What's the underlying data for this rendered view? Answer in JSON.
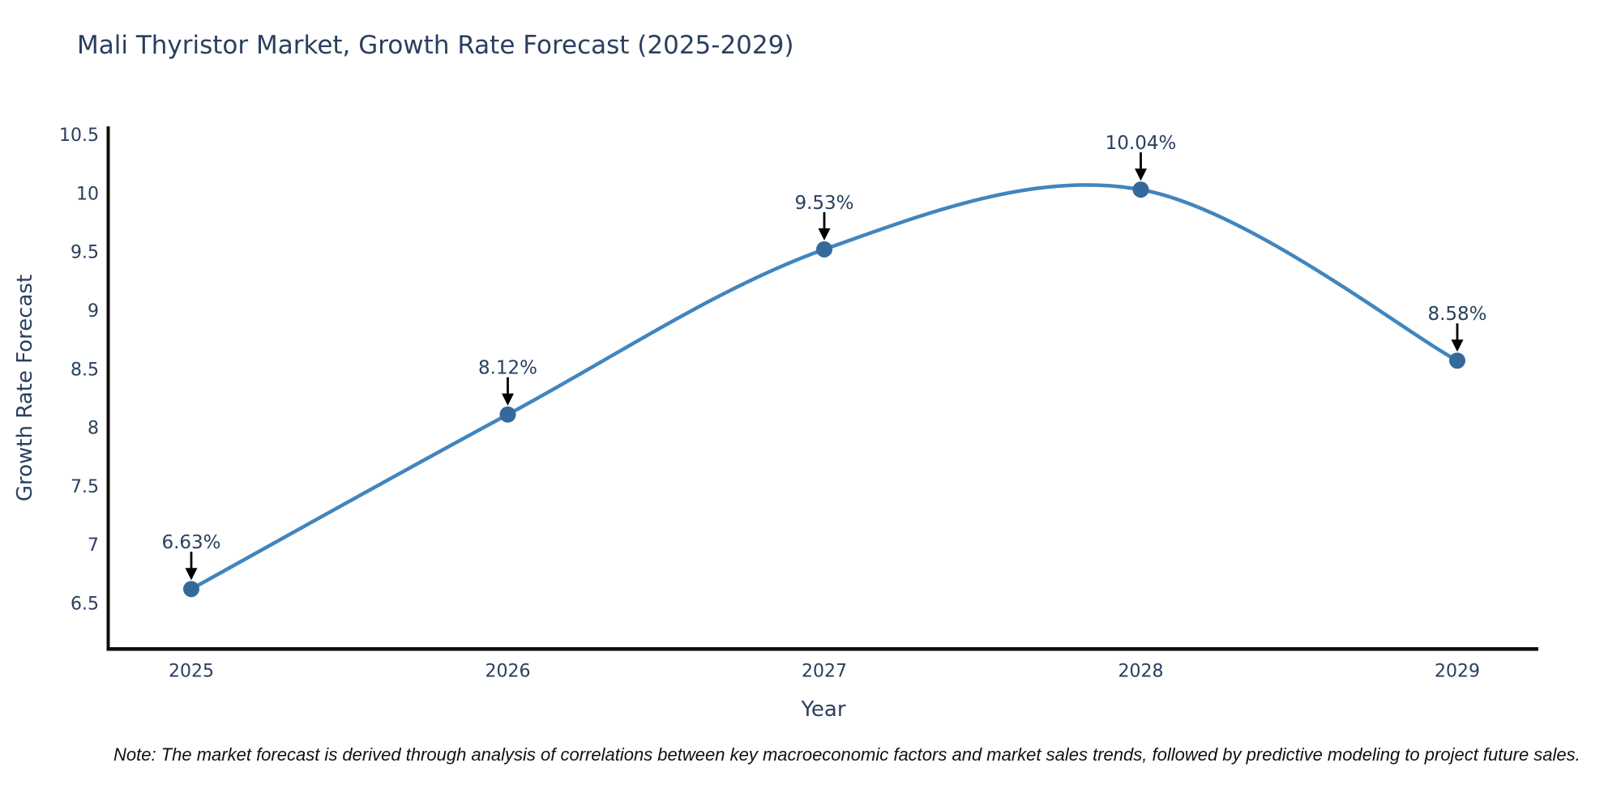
{
  "page": {
    "background": "#ffffff"
  },
  "footnote": "Note: The market forecast is derived through analysis of correlations between key macroeconomic factors and market sales trends, followed by predictive modeling to project future sales.",
  "chart_data": {
    "type": "line",
    "title": "Mali Thyristor Market, Growth Rate Forecast (2025-2029)",
    "xlabel": "Year",
    "ylabel": "Growth Rate Forecast",
    "x": [
      2025,
      2026,
      2027,
      2028,
      2029
    ],
    "series": [
      {
        "name": "Growth Rate Forecast",
        "values": [
          6.63,
          8.12,
          9.53,
          10.04,
          8.58
        ]
      }
    ],
    "point_labels": [
      "6.63%",
      "8.12%",
      "9.53%",
      "10.04%",
      "8.58%"
    ],
    "xtick_labels": [
      "2025",
      "2026",
      "2027",
      "2028",
      "2029"
    ],
    "ytick_values": [
      6.5,
      7,
      7.5,
      8,
      8.5,
      9,
      9.5,
      10,
      10.5
    ],
    "ytick_labels": [
      "6.5",
      "7",
      "7.5",
      "8",
      "8.5",
      "9",
      "9.5",
      "10",
      "10.5"
    ],
    "ylim": [
      6.13,
      10.58
    ],
    "xlim": [
      2024.74,
      2029.26
    ],
    "grid": false,
    "legend": "none",
    "line_shape": "spline",
    "annotation_style": "down-arrow",
    "colors": {
      "line": "#4185bd",
      "marker": "#34699b",
      "text": "#2a3f5f",
      "axis": "#0d0d0d",
      "arrow": "#000000",
      "note": "#111111"
    }
  }
}
